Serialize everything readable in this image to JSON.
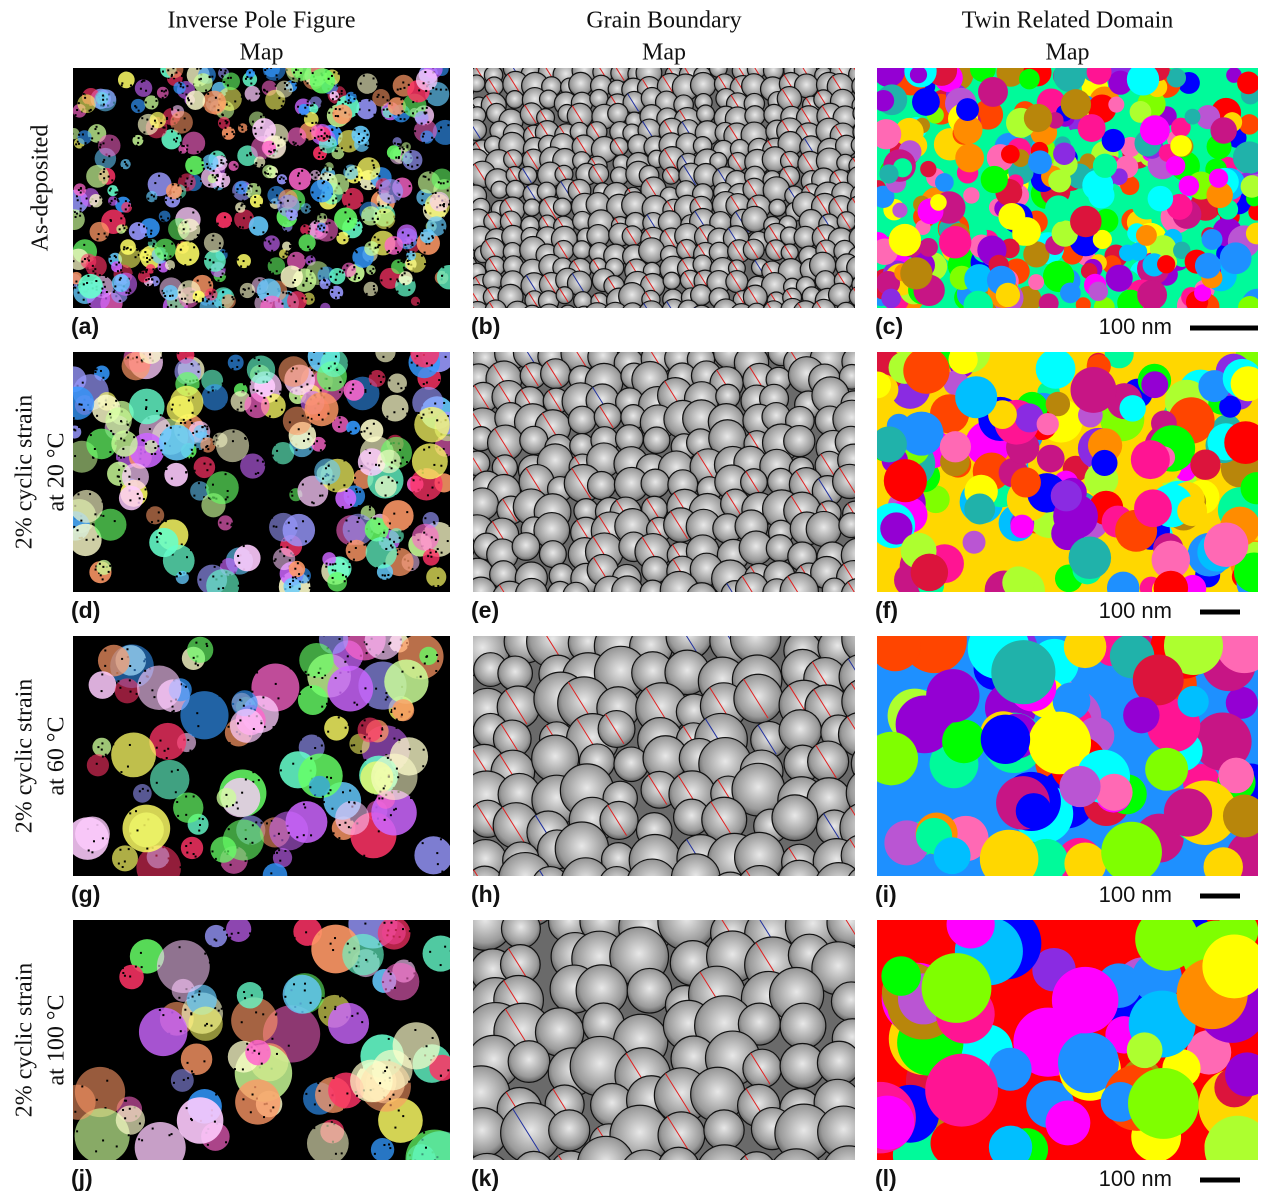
{
  "columns": [
    {
      "title_lines": [
        "Inverse Pole Figure",
        "Map"
      ]
    },
    {
      "title_lines": [
        "Grain Boundary",
        "Map"
      ]
    },
    {
      "title_lines": [
        "Twin Related Domain",
        "Map"
      ]
    }
  ],
  "rows": [
    {
      "label_lines": [
        "As-deposited"
      ],
      "panels": [
        {
          "label": "(a)"
        },
        {
          "label": "(b)"
        },
        {
          "label": "(c)",
          "scale_bar": "100 nm"
        }
      ]
    },
    {
      "label_lines": [
        "2% cyclic strain",
        "at 20 °C"
      ],
      "panels": [
        {
          "label": "(d)"
        },
        {
          "label": "(e)"
        },
        {
          "label": "(f)",
          "scale_bar": "100 nm"
        }
      ]
    },
    {
      "label_lines": [
        "2% cyclic strain",
        "at 60 °C"
      ],
      "panels": [
        {
          "label": "(g)"
        },
        {
          "label": "(h)"
        },
        {
          "label": "(i)",
          "scale_bar": "100 nm"
        }
      ]
    },
    {
      "label_lines": [
        "2% cyclic strain",
        "at 100 °C"
      ],
      "panels": [
        {
          "label": "(j)"
        },
        {
          "label": "(k)"
        },
        {
          "label": "(l)",
          "scale_bar": "100 nm"
        }
      ]
    }
  ]
}
